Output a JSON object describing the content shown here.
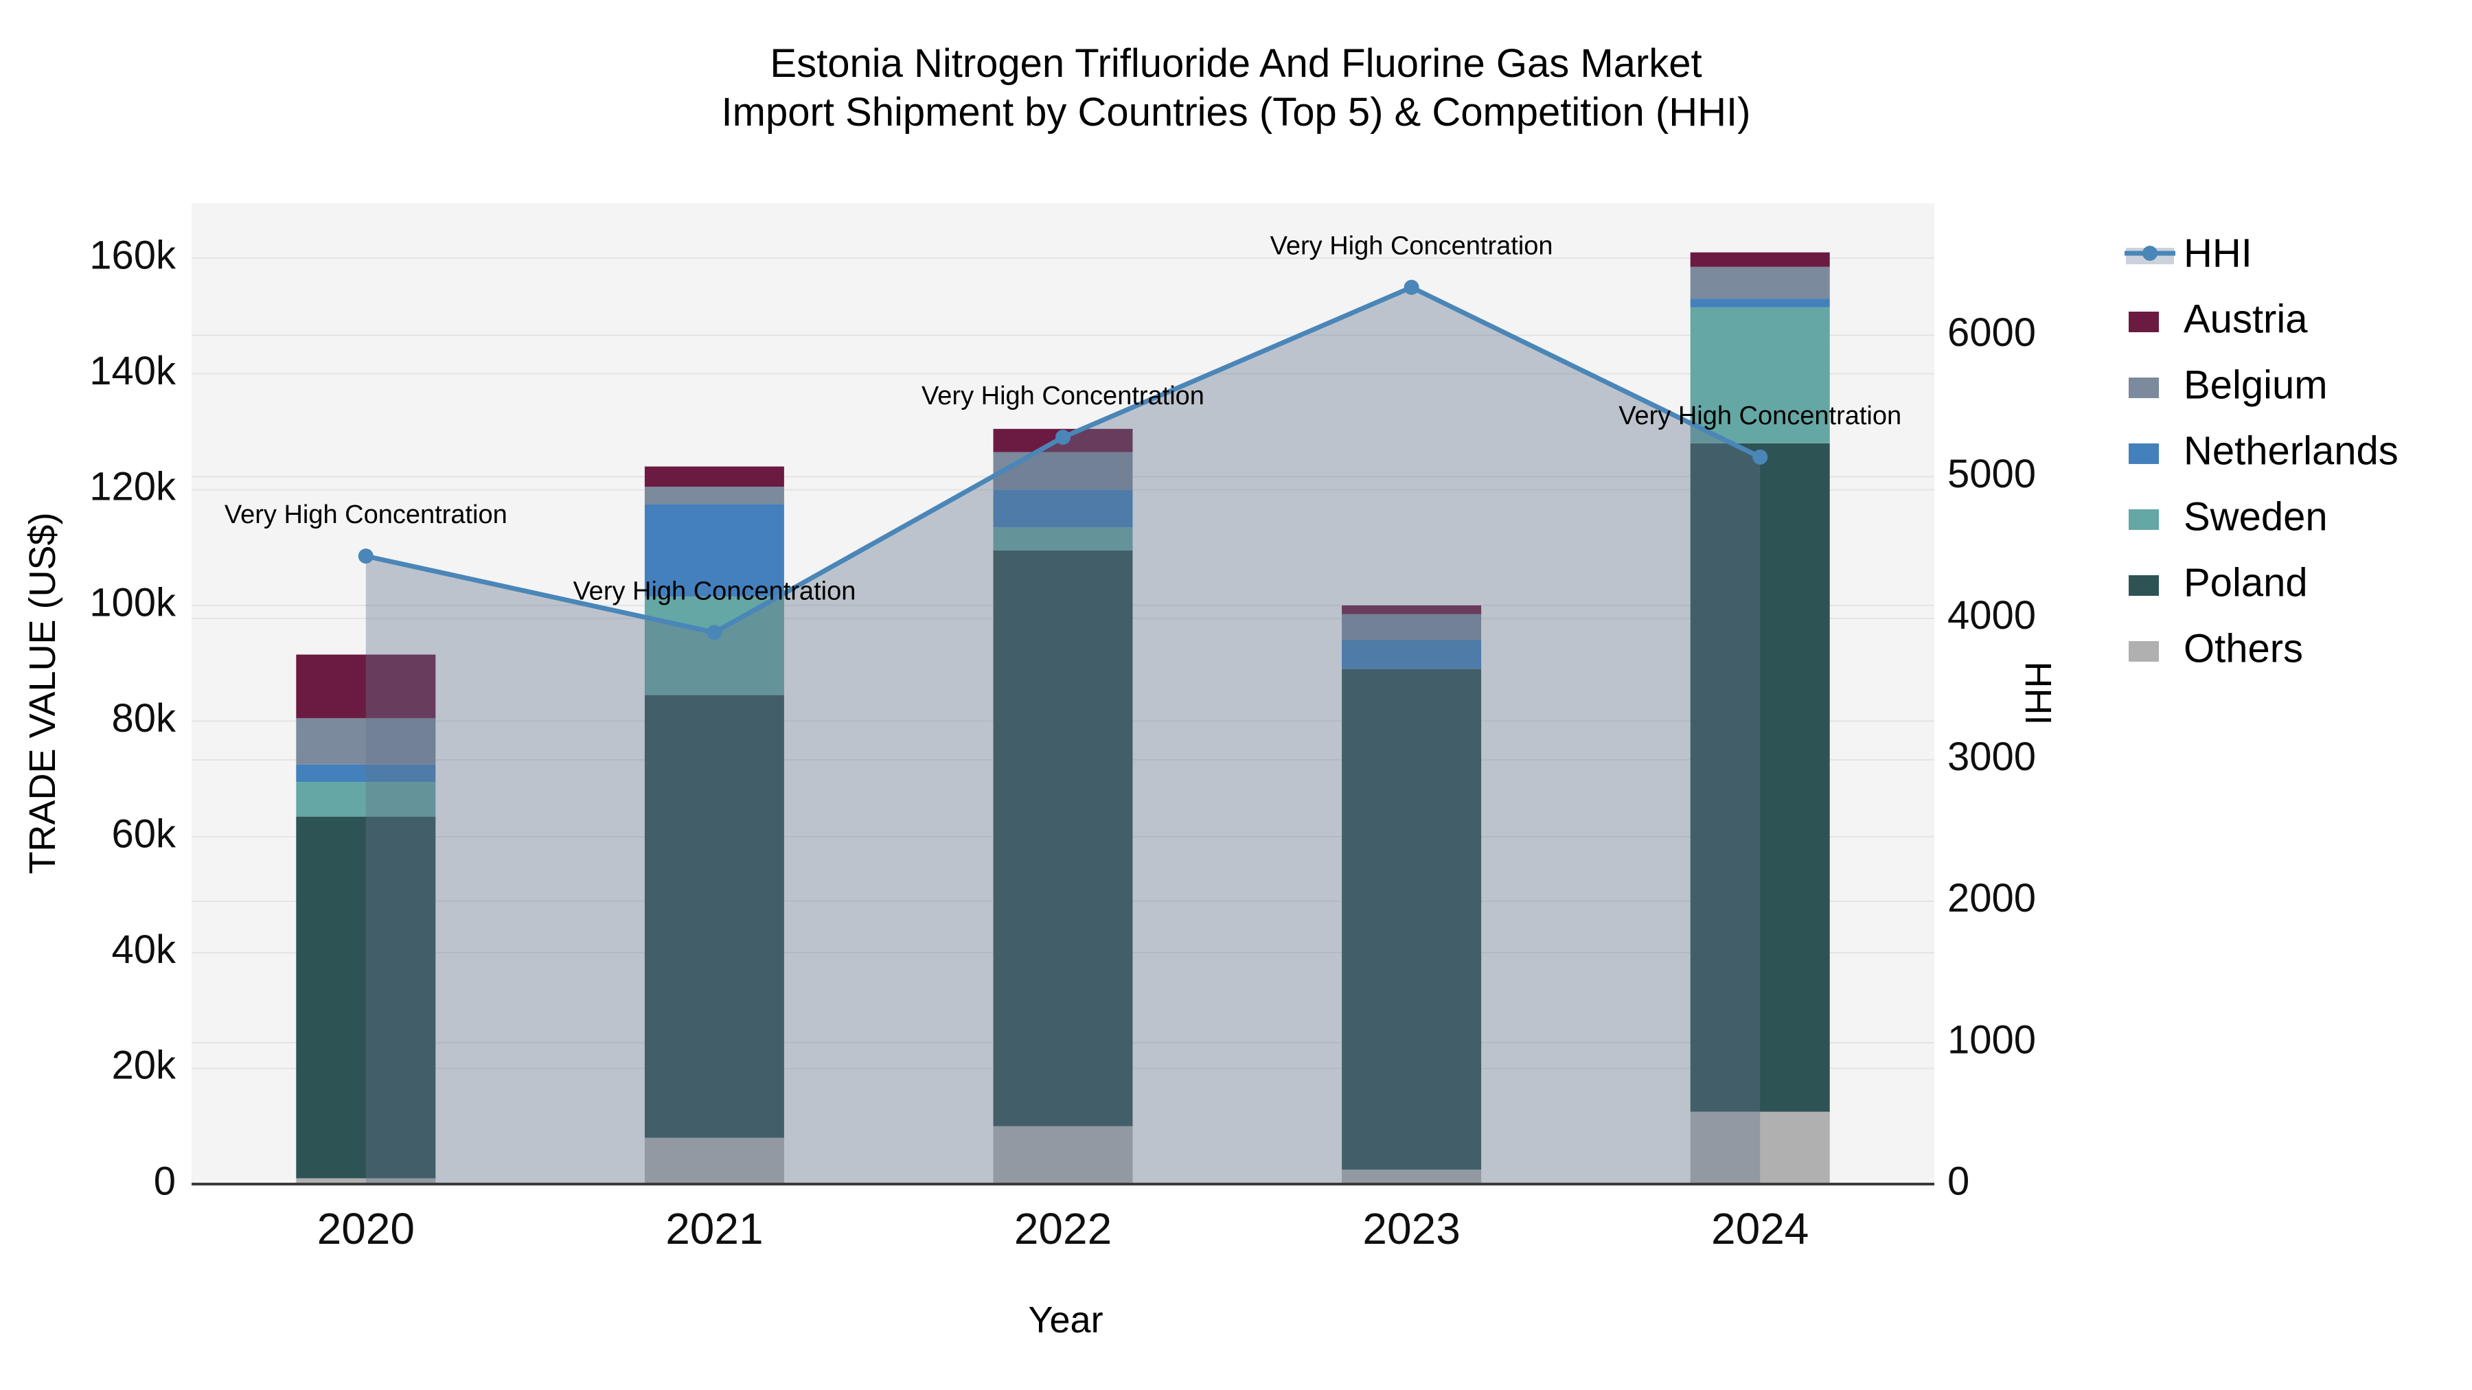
{
  "title": {
    "line1": "Estonia Nitrogen Trifluoride And Fluorine Gas Market",
    "line2": "Import Shipment by Countries (Top 5) & Competition (HHI)"
  },
  "legend": {
    "items": [
      {
        "label": "HHI",
        "color": "#4a86b8",
        "band_color": "#ccd2dc",
        "type": "line"
      },
      {
        "label": "Austria",
        "color": "#6b1b41",
        "type": "swatch"
      },
      {
        "label": "Belgium",
        "color": "#7b8a9c",
        "type": "swatch"
      },
      {
        "label": "Netherlands",
        "color": "#4380bc",
        "type": "swatch"
      },
      {
        "label": "Sweden",
        "color": "#64a7a4",
        "type": "swatch"
      },
      {
        "label": "Poland",
        "color": "#2e5355",
        "type": "swatch"
      },
      {
        "label": "Others",
        "color": "#b0b0b0",
        "type": "swatch"
      }
    ]
  },
  "chart_data": {
    "type": "combo_stacked_bar_line",
    "title": "Estonia Nitrogen Trifluoride And Fluorine Gas Market Import Shipment by Countries (Top 5) & Competition (HHI)",
    "categories": [
      "2020",
      "2021",
      "2022",
      "2023",
      "2024"
    ],
    "bar_series": [
      {
        "name": "Others",
        "color": "#b0b0b0",
        "values": [
          1000,
          8000,
          10000,
          2500,
          12500
        ]
      },
      {
        "name": "Poland",
        "color": "#2e5355",
        "values": [
          62500,
          76500,
          99500,
          86500,
          115500
        ]
      },
      {
        "name": "Sweden",
        "color": "#64a7a4",
        "values": [
          6000,
          17000,
          4000,
          0,
          23500
        ]
      },
      {
        "name": "Netherlands",
        "color": "#4380bc",
        "values": [
          3000,
          16000,
          6500,
          5000,
          1500
        ]
      },
      {
        "name": "Belgium",
        "color": "#7b8a9c",
        "values": [
          8000,
          3000,
          6500,
          4500,
          5500
        ]
      },
      {
        "name": "Austria",
        "color": "#6b1b41",
        "values": [
          11000,
          3500,
          4000,
          1500,
          2500
        ]
      }
    ],
    "bar_totals": [
      91500,
      124000,
      130500,
      100000,
      161000
    ],
    "line_series": {
      "name": "HHI",
      "color": "#4a86b8",
      "area_fill": "rgba(100,115,140,0.38)",
      "values": [
        4440,
        3900,
        5280,
        6340,
        5140
      ]
    },
    "annotations": [
      {
        "category": "2020",
        "text": "Very High Concentration"
      },
      {
        "category": "2021",
        "text": "Very High Concentration"
      },
      {
        "category": "2022",
        "text": "Very High Concentration"
      },
      {
        "category": "2023",
        "text": "Very High Concentration"
      },
      {
        "category": "2024",
        "text": "Very High Concentration"
      }
    ],
    "x_axis": {
      "title": "Year",
      "ticks": [
        "2020",
        "2021",
        "2022",
        "2023",
        "2024"
      ]
    },
    "y_left": {
      "title": "TRADE VALUE (US$)",
      "range": [
        0,
        169500
      ],
      "ticks": [
        {
          "label": "0",
          "value": 0
        },
        {
          "label": "20k",
          "value": 20000
        },
        {
          "label": "40k",
          "value": 40000
        },
        {
          "label": "60k",
          "value": 60000
        },
        {
          "label": "80k",
          "value": 80000
        },
        {
          "label": "100k",
          "value": 100000
        },
        {
          "label": "120k",
          "value": 120000
        },
        {
          "label": "140k",
          "value": 140000
        },
        {
          "label": "160k",
          "value": 160000
        }
      ]
    },
    "y_right": {
      "title": "HHI",
      "range": [
        0,
        6935
      ],
      "ticks": [
        {
          "label": "0",
          "value": 0
        },
        {
          "label": "1000",
          "value": 1000
        },
        {
          "label": "2000",
          "value": 2000
        },
        {
          "label": "3000",
          "value": 3000
        },
        {
          "label": "4000",
          "value": 4000
        },
        {
          "label": "5000",
          "value": 5000
        },
        {
          "label": "6000",
          "value": 6000
        }
      ]
    },
    "style": {
      "plot_bg": "#f4f4f4",
      "grid_color": "#e4e4e4",
      "axis_line_color": "#3b3b3b",
      "text_color": "#0f0f0f"
    }
  }
}
